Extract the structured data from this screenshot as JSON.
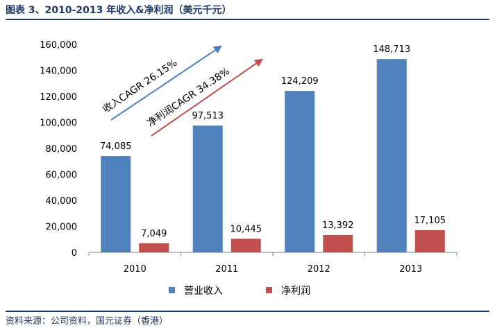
{
  "header": {
    "title": "图表 3、2010-2013 年收入&净利润（美元千元）"
  },
  "footer": {
    "source": "资料来源：公司资料，国元证券（香港）"
  },
  "chart_data": {
    "type": "bar",
    "categories": [
      "2010",
      "2011",
      "2012",
      "2013"
    ],
    "series": [
      {
        "name": "营业收入",
        "color": "#4f81bd",
        "values": [
          74085,
          97513,
          124209,
          148713
        ],
        "labels": [
          "74,085",
          "97,513",
          "124,209",
          "148,713"
        ]
      },
      {
        "name": "净利润",
        "color": "#c0504d",
        "values": [
          7049,
          10445,
          13392,
          17105
        ],
        "labels": [
          "7,049",
          "10,445",
          "13,392",
          "17,105"
        ]
      }
    ],
    "ylim": [
      0,
      160000
    ],
    "yticks": [
      {
        "value": 0,
        "label": "0"
      },
      {
        "value": 20000,
        "label": "20,000"
      },
      {
        "value": 40000,
        "label": "40,000"
      },
      {
        "value": 60000,
        "label": "60,000"
      },
      {
        "value": 80000,
        "label": "80,000"
      },
      {
        "value": 100000,
        "label": "100,000"
      },
      {
        "value": 120000,
        "label": "120,000"
      },
      {
        "value": 140000,
        "label": "140,000"
      },
      {
        "value": 160000,
        "label": "160,000"
      }
    ],
    "grid": false,
    "legend_position": "bottom",
    "annotations": [
      {
        "text": "收入CAGR 26.15%",
        "color": "#4f81bd"
      },
      {
        "text": "净利润CAGR 34.38%",
        "color": "#c0504d"
      }
    ]
  }
}
